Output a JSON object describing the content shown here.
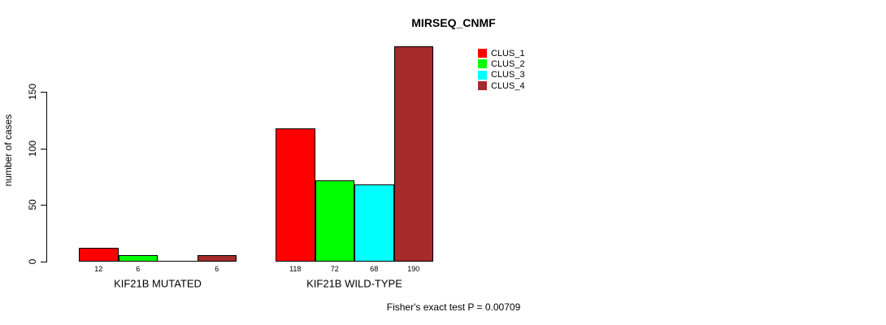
{
  "chart_data": {
    "type": "bar",
    "title": "MIRSEQ_CNMF",
    "ylabel": "number of cases",
    "xlabel": "",
    "yticks": [
      0,
      50,
      100,
      150
    ],
    "ylim": [
      0,
      195
    ],
    "grid": false,
    "legend_position": "top-right",
    "categories": [
      "KIF21B MUTATED",
      "KIF21B WILD-TYPE"
    ],
    "series": [
      {
        "name": "CLUS_1",
        "color": "#ff0000",
        "values": [
          12,
          118
        ]
      },
      {
        "name": "CLUS_2",
        "color": "#00ff00",
        "values": [
          6,
          72
        ]
      },
      {
        "name": "CLUS_3",
        "color": "#00ffff",
        "values": [
          0,
          68
        ]
      },
      {
        "name": "CLUS_4",
        "color": "#a52a2a",
        "values": [
          6,
          190
        ]
      }
    ],
    "bar_value_labels": [
      [
        "12",
        "6",
        "",
        "6"
      ],
      [
        "118",
        "72",
        "68",
        "190"
      ]
    ],
    "footnote": "Fisher's exact test P = 0.00709"
  },
  "colors": {
    "background": "#ffffff",
    "axis": "#000000",
    "text": "#000000",
    "bar_border": "#000000"
  }
}
